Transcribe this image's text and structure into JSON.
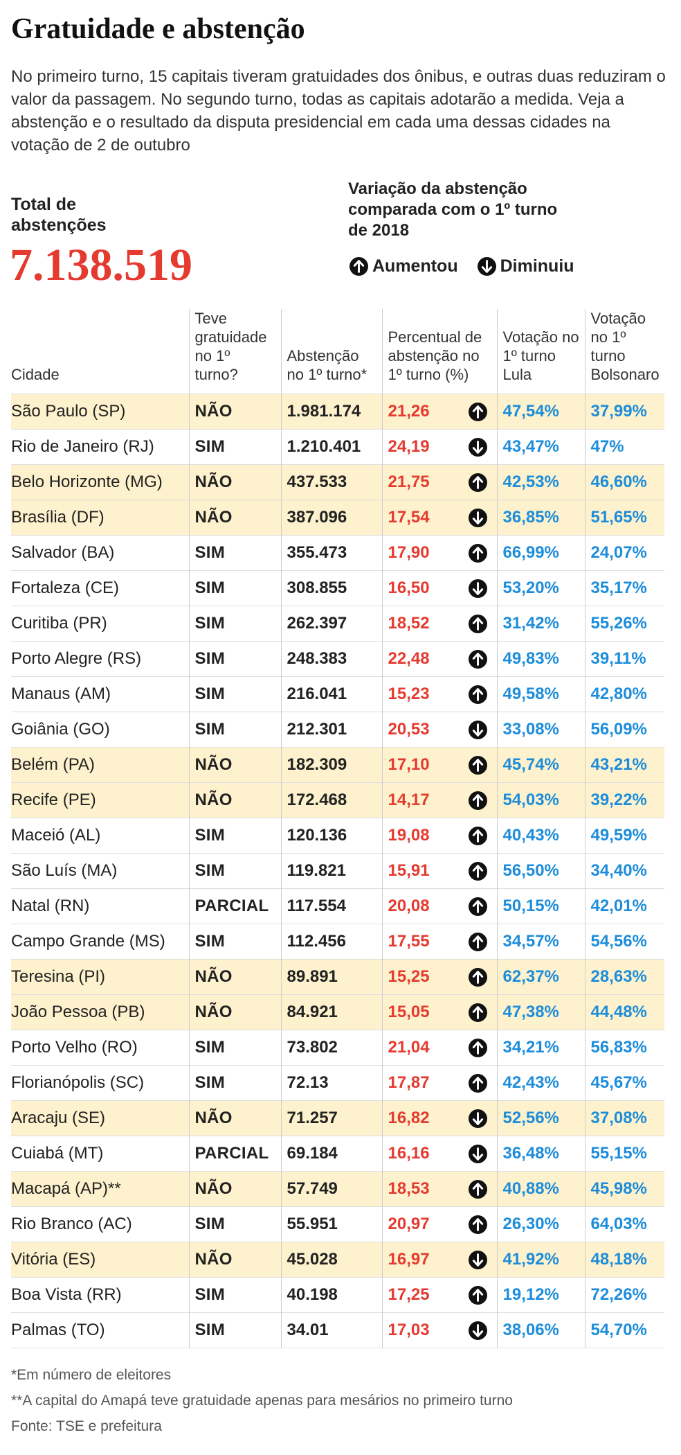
{
  "header": {
    "title": "Gratuidade e abstenção",
    "intro": "No primeiro turno, 15 capitais tiveram gratuidades dos ônibus, e outras duas reduziram o valor da passagem. No segundo turno, todas as capitais adotarão a medida. Veja a abstenção e o resultado da disputa presidencial em cada uma dessas cidades na votação de 2 de outubro"
  },
  "total": {
    "label": "Total de abstenções",
    "value": "7.138.519"
  },
  "legend": {
    "title": "Variação da abstenção comparada com o 1º turno de 2018",
    "items": [
      {
        "label": "Aumentou",
        "trend": "up"
      },
      {
        "label": "Diminuiu",
        "trend": "down"
      }
    ]
  },
  "table": {
    "columns": [
      "Cidade",
      "Teve gratuidade no 1º turno?",
      "Abstenção no 1º turno*",
      "Percentual de abstenção no 1º turno (%)",
      "Votação no 1º turno Lula",
      "Votação no 1º turno Bolsonaro"
    ],
    "rows": [
      {
        "cells": [
          "São Paulo (SP)",
          "NÃO",
          "1.981.174",
          "21,26",
          "47,54%",
          "37,99%"
        ],
        "trend": "up",
        "highlight": true
      },
      {
        "cells": [
          "Rio de Janeiro (RJ)",
          "SIM",
          "1.210.401",
          "24,19",
          "43,47%",
          "47%"
        ],
        "trend": "down",
        "highlight": false
      },
      {
        "cells": [
          "Belo Horizonte (MG)",
          "NÃO",
          "437.533",
          "21,75",
          "42,53%",
          "46,60%"
        ],
        "trend": "up",
        "highlight": true
      },
      {
        "cells": [
          "Brasília (DF)",
          "NÃO",
          "387.096",
          "17,54",
          "36,85%",
          "51,65%"
        ],
        "trend": "down",
        "highlight": true
      },
      {
        "cells": [
          "Salvador (BA)",
          "SIM",
          "355.473",
          "17,90",
          "66,99%",
          "24,07%"
        ],
        "trend": "up",
        "highlight": false
      },
      {
        "cells": [
          "Fortaleza (CE)",
          "SIM",
          "308.855",
          "16,50",
          "53,20%",
          "35,17%"
        ],
        "trend": "down",
        "highlight": false
      },
      {
        "cells": [
          "Curitiba (PR)",
          "SIM",
          "262.397",
          "18,52",
          "31,42%",
          "55,26%"
        ],
        "trend": "up",
        "highlight": false
      },
      {
        "cells": [
          "Porto Alegre (RS)",
          "SIM",
          "248.383",
          "22,48",
          "49,83%",
          "39,11%"
        ],
        "trend": "up",
        "highlight": false
      },
      {
        "cells": [
          "Manaus (AM)",
          "SIM",
          "216.041",
          "15,23",
          "49,58%",
          "42,80%"
        ],
        "trend": "up",
        "highlight": false
      },
      {
        "cells": [
          "Goiânia (GO)",
          "SIM",
          "212.301",
          "20,53",
          "33,08%",
          "56,09%"
        ],
        "trend": "down",
        "highlight": false
      },
      {
        "cells": [
          "Belém (PA)",
          "NÃO",
          "182.309",
          "17,10",
          "45,74%",
          "43,21%"
        ],
        "trend": "up",
        "highlight": true
      },
      {
        "cells": [
          "Recife (PE)",
          "NÃO",
          "172.468",
          "14,17",
          "54,03%",
          "39,22%"
        ],
        "trend": "up",
        "highlight": true
      },
      {
        "cells": [
          "Maceió (AL)",
          "SIM",
          "120.136",
          "19,08",
          "40,43%",
          "49,59%"
        ],
        "trend": "up",
        "highlight": false
      },
      {
        "cells": [
          "São Luís (MA)",
          "SIM",
          "119.821",
          "15,91",
          "56,50%",
          "34,40%"
        ],
        "trend": "up",
        "highlight": false
      },
      {
        "cells": [
          "Natal (RN)",
          "PARCIAL",
          "117.554",
          "20,08",
          "50,15%",
          "42,01%"
        ],
        "trend": "up",
        "highlight": false
      },
      {
        "cells": [
          "Campo Grande (MS)",
          "SIM",
          "112.456",
          "17,55",
          "34,57%",
          "54,56%"
        ],
        "trend": "up",
        "highlight": false
      },
      {
        "cells": [
          "Teresina (PI)",
          "NÃO",
          "89.891",
          "15,25",
          "62,37%",
          "28,63%"
        ],
        "trend": "up",
        "highlight": true
      },
      {
        "cells": [
          "João Pessoa (PB)",
          "NÃO",
          "84.921",
          "15,05",
          "47,38%",
          "44,48%"
        ],
        "trend": "up",
        "highlight": true
      },
      {
        "cells": [
          "Porto Velho (RO)",
          "SIM",
          "73.802",
          "21,04",
          "34,21%",
          "56,83%"
        ],
        "trend": "up",
        "highlight": false
      },
      {
        "cells": [
          "Florianópolis (SC)",
          "SIM",
          "72.13",
          "17,87",
          "42,43%",
          "45,67%"
        ],
        "trend": "up",
        "highlight": false
      },
      {
        "cells": [
          "Aracaju (SE)",
          "NÃO",
          "71.257",
          "16,82",
          "52,56%",
          "37,08%"
        ],
        "trend": "down",
        "highlight": true
      },
      {
        "cells": [
          "Cuiabá (MT)",
          "PARCIAL",
          "69.184",
          "16,16",
          "36,48%",
          "55,15%"
        ],
        "trend": "down",
        "highlight": false
      },
      {
        "cells": [
          "Macapá (AP)**",
          "NÃO",
          "57.749",
          "18,53",
          "40,88%",
          "45,98%"
        ],
        "trend": "up",
        "highlight": true
      },
      {
        "cells": [
          "Rio Branco (AC)",
          "SIM",
          "55.951",
          "20,97",
          "26,30%",
          "64,03%"
        ],
        "trend": "up",
        "highlight": false
      },
      {
        "cells": [
          "Vitória (ES)",
          "NÃO",
          "45.028",
          "16,97",
          "41,92%",
          "48,18%"
        ],
        "trend": "down",
        "highlight": true
      },
      {
        "cells": [
          "Boa Vista (RR)",
          "SIM",
          "40.198",
          "17,25",
          "19,12%",
          "72,26%"
        ],
        "trend": "up",
        "highlight": false
      },
      {
        "cells": [
          "Palmas (TO)",
          "SIM",
          "34.01",
          "17,03",
          "38,06%",
          "54,70%"
        ],
        "trend": "down",
        "highlight": false
      }
    ]
  },
  "footnotes": [
    "*Em número de eleitores",
    "**A capital do Amapá teve gratuidade apenas para mesários no primeiro turno",
    "Fonte: TSE e prefeitura"
  ]
}
